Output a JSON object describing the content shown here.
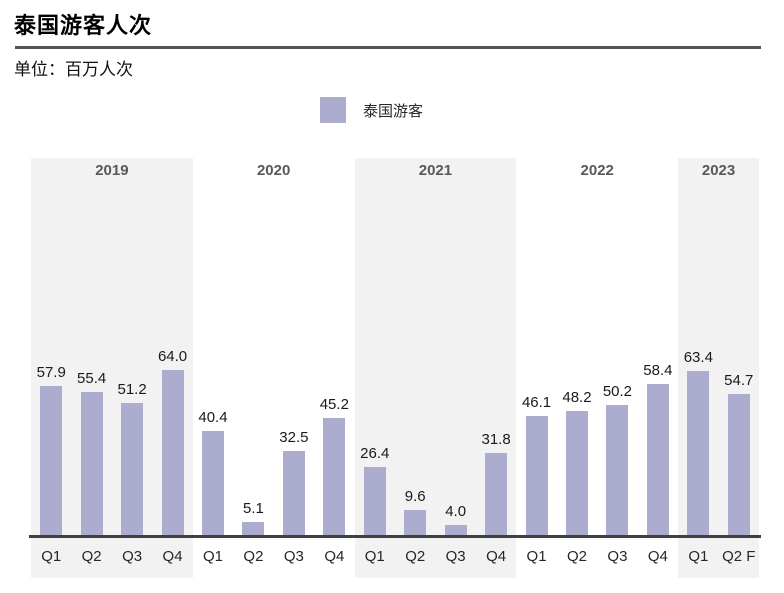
{
  "page": {
    "title": "泰国游客人次",
    "unit_label": "单位：百万人次"
  },
  "legend": {
    "label": "泰国游客",
    "swatch_color": "#ACACCF"
  },
  "colors": {
    "bar": "#ACACCF",
    "band_shaded": "#F2F2F2",
    "axis": "#404040",
    "year_text": "#595959",
    "value_text": "#1a1a1a"
  },
  "chart_data": {
    "type": "bar",
    "title": "泰国游客人次",
    "ylabel": "百万人次",
    "legend_entries": [
      "泰国游客"
    ],
    "legend_position": "top-center",
    "grid": false,
    "ylim": [
      0,
      70
    ],
    "value_labels_shown": true,
    "groups": [
      {
        "year": "2019",
        "shaded": true,
        "quarters": [
          "Q1",
          "Q2",
          "Q3",
          "Q4"
        ],
        "values": [
          57.9,
          55.4,
          51.2,
          64.0
        ]
      },
      {
        "year": "2020",
        "shaded": false,
        "quarters": [
          "Q1",
          "Q2",
          "Q3",
          "Q4"
        ],
        "values": [
          40.4,
          5.1,
          32.5,
          45.2
        ]
      },
      {
        "year": "2021",
        "shaded": true,
        "quarters": [
          "Q1",
          "Q2",
          "Q3",
          "Q4"
        ],
        "values": [
          26.4,
          9.6,
          4.0,
          31.8
        ]
      },
      {
        "year": "2022",
        "shaded": false,
        "quarters": [
          "Q1",
          "Q2",
          "Q3",
          "Q4"
        ],
        "values": [
          46.1,
          48.2,
          50.2,
          58.4
        ]
      },
      {
        "year": "2023",
        "shaded": true,
        "quarters": [
          "Q1",
          "Q2 F"
        ],
        "values": [
          63.4,
          54.7
        ]
      }
    ]
  }
}
